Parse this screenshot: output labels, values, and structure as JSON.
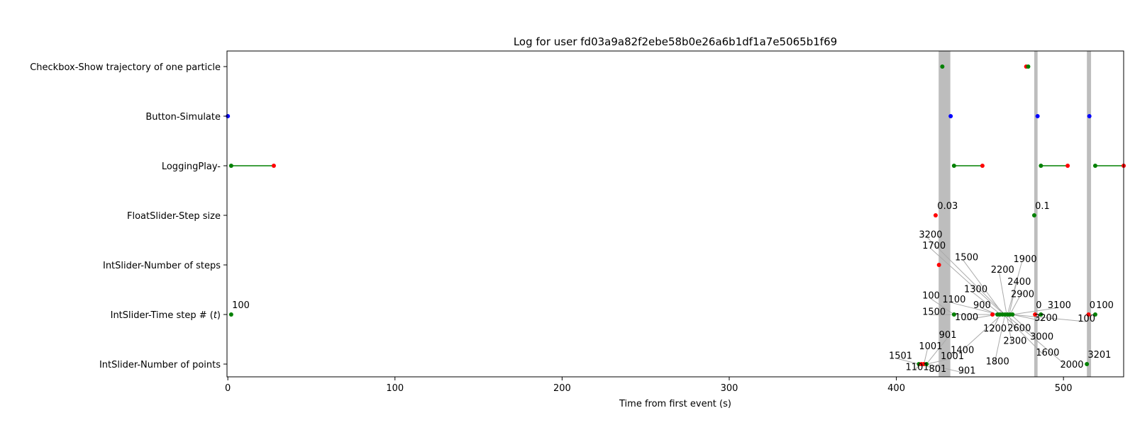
{
  "chart_data": {
    "type": "scatter",
    "title": "Log for user fd03a9a82f2ebe58b0e26a6b1df1a7e5065b1f69",
    "xlabel": "Time from first event (s)",
    "ylabel": "",
    "xlim": [
      -0.5,
      536
    ],
    "x_ticks": [
      0,
      100,
      200,
      300,
      400,
      500
    ],
    "grid": false,
    "categories": [
      "IntSlider-Number of points",
      "IntSlider-Time step # ($t$)",
      "IntSlider-Number of steps",
      "FloatSlider-Step size",
      "LoggingPlay-",
      "Button-Simulate",
      "Checkbox-Show trajectory of one particle"
    ],
    "category_labels": [
      {
        "pre": "IntSlider-Number of points",
        "italic": "",
        "post": ""
      },
      {
        "pre": "IntSlider-Time step # (",
        "italic": "t",
        "post": ")"
      },
      {
        "pre": "IntSlider-Number of steps",
        "italic": "",
        "post": ""
      },
      {
        "pre": "FloatSlider-Step size",
        "italic": "",
        "post": ""
      },
      {
        "pre": "LoggingPlay-",
        "italic": "",
        "post": ""
      },
      {
        "pre": "Button-Simulate",
        "italic": "",
        "post": ""
      },
      {
        "pre": "Checkbox-Show trajectory of one particle",
        "italic": "",
        "post": ""
      }
    ],
    "colors": {
      "green": "#008000",
      "red": "#ff0000",
      "blue": "#0000ff",
      "span": "#bdbdbd",
      "leader": "#aaaaaa"
    },
    "spans": [
      [
        425.3,
        432.3
      ],
      [
        482.5,
        484.5
      ],
      [
        514.0,
        516.5
      ]
    ],
    "segments": [
      {
        "row": 4,
        "x0": 2.0,
        "x1": 27.5
      },
      {
        "row": 4,
        "x0": 434.5,
        "x1": 451.5
      },
      {
        "row": 4,
        "x0": 486.5,
        "x1": 502.5
      },
      {
        "row": 4,
        "x0": 519.0,
        "x1": 536.0
      }
    ],
    "points": [
      {
        "row": 6,
        "x": 427.5,
        "color": "green"
      },
      {
        "row": 6,
        "x": 477.7,
        "color": "red"
      },
      {
        "row": 6,
        "x": 478.9,
        "color": "green"
      },
      {
        "row": 5,
        "x": 0.0,
        "color": "blue"
      },
      {
        "row": 5,
        "x": 432.5,
        "color": "blue"
      },
      {
        "row": 5,
        "x": 484.5,
        "color": "blue"
      },
      {
        "row": 5,
        "x": 515.5,
        "color": "blue"
      },
      {
        "row": 4,
        "x": 2.0,
        "color": "green"
      },
      {
        "row": 4,
        "x": 27.5,
        "color": "red"
      },
      {
        "row": 4,
        "x": 434.5,
        "color": "green"
      },
      {
        "row": 4,
        "x": 451.5,
        "color": "red"
      },
      {
        "row": 4,
        "x": 486.5,
        "color": "green"
      },
      {
        "row": 4,
        "x": 502.5,
        "color": "red"
      },
      {
        "row": 4,
        "x": 519.0,
        "color": "green"
      },
      {
        "row": 4,
        "x": 536.0,
        "color": "red"
      },
      {
        "row": 3,
        "x": 423.5,
        "color": "red"
      },
      {
        "row": 3,
        "x": 482.5,
        "color": "green"
      },
      {
        "row": 2,
        "x": 425.5,
        "color": "red"
      },
      {
        "row": 1,
        "x": 2.0,
        "color": "green"
      },
      {
        "row": 1,
        "x": 434.5,
        "color": "green"
      },
      {
        "row": 1,
        "x": 457.5,
        "color": "red"
      },
      {
        "row": 1,
        "x": 460.5,
        "color": "green"
      },
      {
        "row": 1,
        "x": 462.0,
        "color": "green"
      },
      {
        "row": 1,
        "x": 463.5,
        "color": "green"
      },
      {
        "row": 1,
        "x": 465.0,
        "color": "green"
      },
      {
        "row": 1,
        "x": 466.5,
        "color": "green"
      },
      {
        "row": 1,
        "x": 468.0,
        "color": "green"
      },
      {
        "row": 1,
        "x": 469.5,
        "color": "green"
      },
      {
        "row": 1,
        "x": 483.0,
        "color": "red"
      },
      {
        "row": 1,
        "x": 486.5,
        "color": "green"
      },
      {
        "row": 1,
        "x": 515.0,
        "color": "red"
      },
      {
        "row": 1,
        "x": 519.0,
        "color": "green"
      },
      {
        "row": 0,
        "x": 413.5,
        "color": "green"
      },
      {
        "row": 0,
        "x": 415.0,
        "color": "red"
      },
      {
        "row": 0,
        "x": 416.5,
        "color": "red"
      },
      {
        "row": 0,
        "x": 418.0,
        "color": "green"
      },
      {
        "row": 0,
        "x": 514.0,
        "color": "green"
      }
    ],
    "annotations": [
      {
        "text": "0.03",
        "row": 3,
        "x": 423.5,
        "tx": 424.5,
        "trow": 3.13,
        "leader": false
      },
      {
        "text": "0.1",
        "row": 3,
        "x": 482.5,
        "tx": 483.0,
        "trow": 3.13,
        "leader": false
      },
      {
        "text": "100",
        "row": 1,
        "x": 2.0,
        "tx": 2.5,
        "trow": 1.13,
        "leader": false
      },
      {
        "text": "0",
        "row": 1,
        "x": 483.0,
        "tx": 483.5,
        "trow": 1.13,
        "leader": false
      },
      {
        "text": "0",
        "row": 1,
        "x": 515.0,
        "tx": 515.5,
        "trow": 1.13,
        "leader": false
      },
      {
        "text": "100",
        "row": 1,
        "x": 519.0,
        "tx": 519.5,
        "trow": 1.13,
        "leader": false
      },
      {
        "text": "3201",
        "row": 0,
        "x": 514.0,
        "tx": 514.5,
        "trow": 0.13,
        "leader": false
      },
      {
        "text": "3200",
        "row": 1,
        "x": 465.0,
        "tx": 413.5,
        "trow": 2.55,
        "leader": true
      },
      {
        "text": "1700",
        "row": 1,
        "x": 464.5,
        "tx": 415.5,
        "trow": 2.33,
        "leader": true
      },
      {
        "text": "1500",
        "row": 1,
        "x": 464.0,
        "tx": 435.0,
        "trow": 2.09,
        "leader": true
      },
      {
        "text": "1900",
        "row": 1,
        "x": 466.5,
        "tx": 470.0,
        "trow": 2.06,
        "leader": true
      },
      {
        "text": "2200",
        "row": 1,
        "x": 466.0,
        "tx": 456.5,
        "trow": 1.84,
        "leader": true
      },
      {
        "text": "2400",
        "row": 1,
        "x": 467.5,
        "tx": 466.5,
        "trow": 1.6,
        "leader": true
      },
      {
        "text": "1300",
        "row": 1,
        "x": 462.5,
        "tx": 440.5,
        "trow": 1.45,
        "leader": true
      },
      {
        "text": "2900",
        "row": 1,
        "x": 468.0,
        "tx": 468.5,
        "trow": 1.35,
        "leader": true
      },
      {
        "text": "100",
        "row": 1,
        "x": 434.5,
        "tx": 415.5,
        "trow": 1.32,
        "leader": true
      },
      {
        "text": "1100",
        "row": 1,
        "x": 461.0,
        "tx": 427.5,
        "trow": 1.24,
        "leader": true
      },
      {
        "text": "900",
        "row": 1,
        "x": 460.5,
        "tx": 446.0,
        "trow": 1.13,
        "leader": true
      },
      {
        "text": "3100",
        "row": 1,
        "x": 469.5,
        "tx": 490.5,
        "trow": 1.13,
        "leader": true
      },
      {
        "text": "1500",
        "row": 1,
        "x": 459.5,
        "tx": 415.5,
        "trow": 0.995,
        "leader": true
      },
      {
        "text": "1000",
        "row": 1,
        "x": 460.0,
        "tx": 435.0,
        "trow": 0.885,
        "leader": true
      },
      {
        "text": "3200",
        "row": 1,
        "x": 469.0,
        "tx": 482.5,
        "trow": 0.87,
        "leader": true
      },
      {
        "text": "100",
        "row": 1,
        "x": 469.0,
        "tx": 508.5,
        "trow": 0.855,
        "leader": true
      },
      {
        "text": "2600",
        "row": 1,
        "x": 467.0,
        "tx": 466.5,
        "trow": 0.665,
        "leader": true
      },
      {
        "text": "1200",
        "row": 1,
        "x": 462.0,
        "tx": 452.0,
        "trow": 0.655,
        "leader": true
      },
      {
        "text": "3000",
        "row": 1,
        "x": 468.5,
        "tx": 480.0,
        "trow": 0.49,
        "leader": true
      },
      {
        "text": "2300",
        "row": 1,
        "x": 466.0,
        "tx": 464.0,
        "trow": 0.41,
        "leader": true
      },
      {
        "text": "1400",
        "row": 1,
        "x": 463.0,
        "tx": 432.5,
        "trow": 0.22,
        "leader": true
      },
      {
        "text": "1600",
        "row": 1,
        "x": 464.0,
        "tx": 483.5,
        "trow": 0.17,
        "leader": true
      },
      {
        "text": "1800",
        "row": 1,
        "x": 465.0,
        "tx": 453.5,
        "trow": -0.01,
        "leader": true
      },
      {
        "text": "2000",
        "row": 1,
        "x": 465.5,
        "tx": 498.0,
        "trow": -0.07,
        "leader": true
      },
      {
        "text": "901",
        "row": 0,
        "x": 418.0,
        "tx": 425.5,
        "trow": 0.53,
        "leader": true
      },
      {
        "text": "1001",
        "row": 0,
        "x": 416.5,
        "tx": 413.5,
        "trow": 0.3,
        "leader": true
      },
      {
        "text": "1501",
        "row": 0,
        "x": 413.5,
        "tx": 395.5,
        "trow": 0.11,
        "leader": true
      },
      {
        "text": "1001",
        "row": 0,
        "x": 418.0,
        "tx": 426.5,
        "trow": 0.1,
        "leader": true
      },
      {
        "text": "1101",
        "row": 0,
        "x": 415.0,
        "tx": 405.5,
        "trow": -0.12,
        "leader": true
      },
      {
        "text": "801",
        "row": 0,
        "x": 416.5,
        "tx": 419.5,
        "trow": -0.16,
        "leader": true
      },
      {
        "text": "901",
        "row": 0,
        "x": 418.0,
        "tx": 437.0,
        "trow": -0.19,
        "leader": true
      }
    ]
  }
}
